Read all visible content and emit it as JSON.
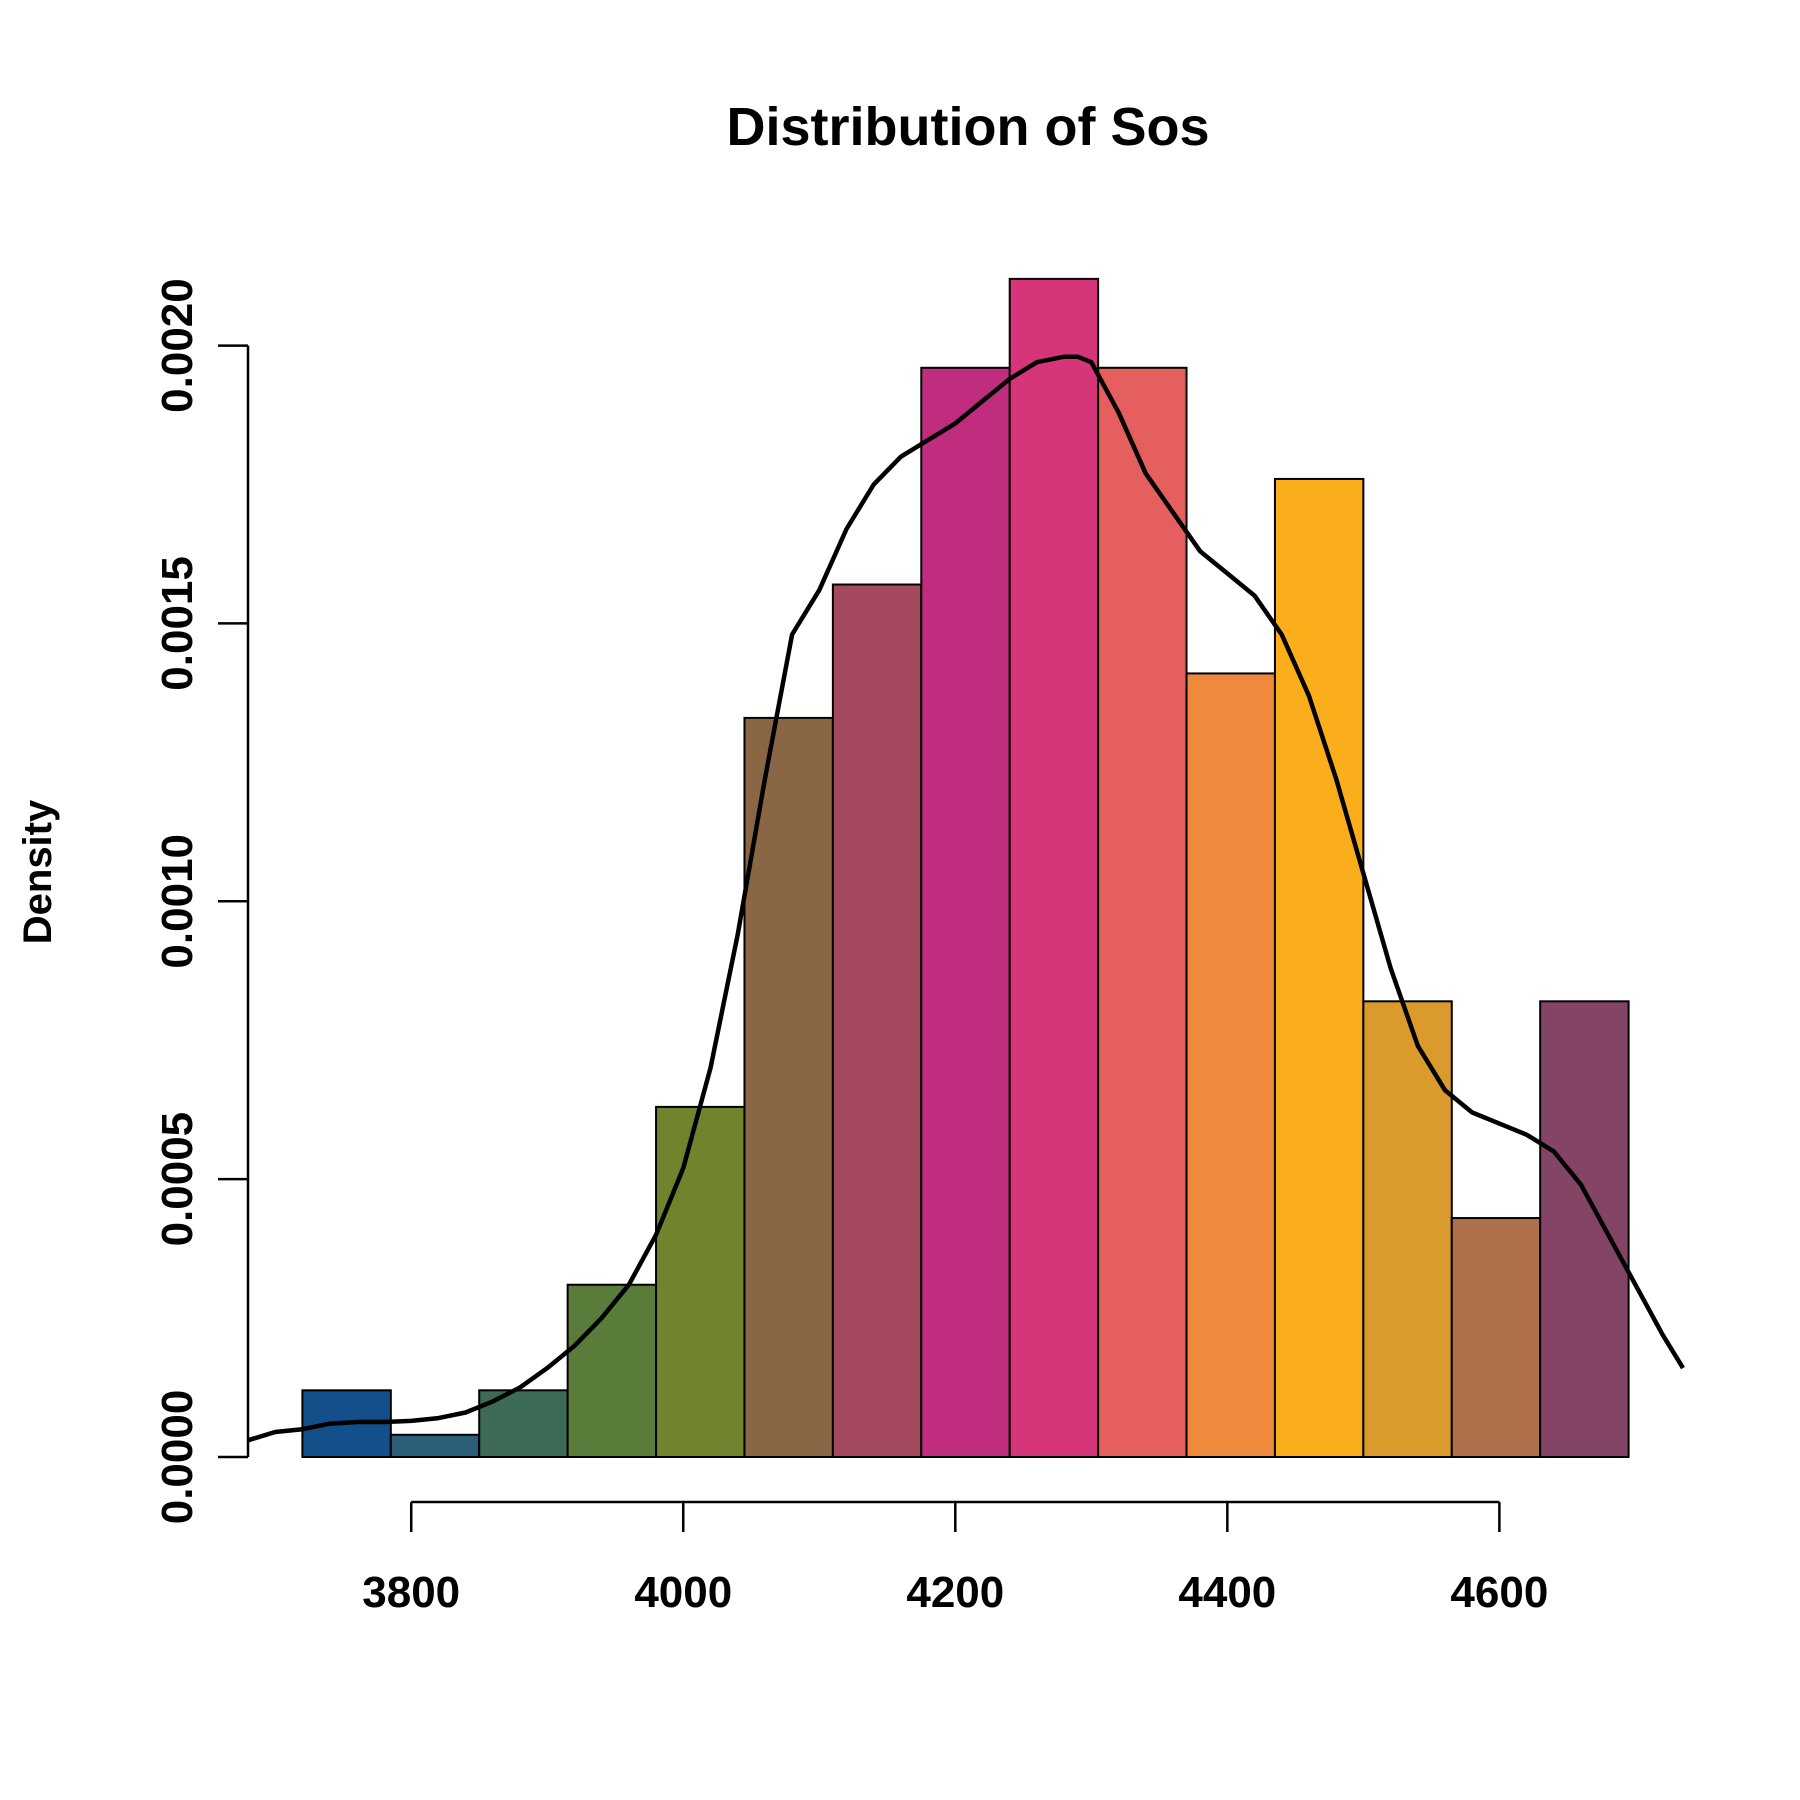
{
  "chart_data": {
    "type": "bar",
    "title": "Distribution of Sos",
    "xlabel": "",
    "ylabel": "Density",
    "xlim": [
      3680,
      4735
    ],
    "ylim": [
      0,
      0.0021
    ],
    "x_ticks": [
      3800,
      4000,
      4200,
      4400,
      4600
    ],
    "x_tick_labels": [
      "3800",
      "4000",
      "4200",
      "4400",
      "4600"
    ],
    "y_ticks": [
      0.0,
      0.0005,
      0.001,
      0.0015,
      0.002
    ],
    "y_tick_labels": [
      "0.0000",
      "0.0005",
      "0.0010",
      "0.0015",
      "0.0020"
    ],
    "bins": [
      {
        "x0": 3720,
        "x1": 3785,
        "density": 0.00012,
        "color": "#134F8A"
      },
      {
        "x0": 3785,
        "x1": 3850,
        "density": 4e-05,
        "color": "#2B5E79"
      },
      {
        "x0": 3850,
        "x1": 3915,
        "density": 0.00012,
        "color": "#3E6B55"
      },
      {
        "x0": 3915,
        "x1": 3980,
        "density": 0.00031,
        "color": "#5A7C3B"
      },
      {
        "x0": 3980,
        "x1": 4045,
        "density": 0.00063,
        "color": "#71842D"
      },
      {
        "x0": 4045,
        "x1": 4110,
        "density": 0.00133,
        "color": "#8A6744"
      },
      {
        "x0": 4110,
        "x1": 4175,
        "density": 0.00157,
        "color": "#A54A5E"
      },
      {
        "x0": 4175,
        "x1": 4240,
        "density": 0.00196,
        "color": "#C02D7E"
      },
      {
        "x0": 4240,
        "x1": 4305,
        "density": 0.00212,
        "color": "#D6357A"
      },
      {
        "x0": 4305,
        "x1": 4370,
        "density": 0.00196,
        "color": "#E45F5D"
      },
      {
        "x0": 4370,
        "x1": 4435,
        "density": 0.00141,
        "color": "#EF893C"
      },
      {
        "x0": 4435,
        "x1": 4500,
        "density": 0.00176,
        "color": "#FAAE1C"
      },
      {
        "x0": 4500,
        "x1": 4565,
        "density": 0.00082,
        "color": "#DB9A2C"
      },
      {
        "x0": 4565,
        "x1": 4630,
        "density": 0.00043,
        "color": "#B0704B"
      },
      {
        "x0": 4630,
        "x1": 4695,
        "density": 0.00082,
        "color": "#834466"
      }
    ],
    "density_curve": {
      "x": [
        3680,
        3700,
        3720,
        3740,
        3760,
        3780,
        3800,
        3820,
        3840,
        3860,
        3880,
        3900,
        3920,
        3940,
        3960,
        3980,
        4000,
        4020,
        4040,
        4060,
        4080,
        4100,
        4120,
        4140,
        4160,
        4180,
        4200,
        4220,
        4240,
        4260,
        4280,
        4290,
        4300,
        4320,
        4340,
        4360,
        4380,
        4400,
        4420,
        4440,
        4460,
        4480,
        4500,
        4520,
        4540,
        4560,
        4580,
        4600,
        4620,
        4640,
        4660,
        4680,
        4700,
        4720,
        4735
      ],
      "y": [
        3e-05,
        4.5e-05,
        5e-05,
        6e-05,
        6.3e-05,
        6.3e-05,
        6.5e-05,
        7e-05,
        8e-05,
        0.0001,
        0.000125,
        0.00016,
        0.0002,
        0.00025,
        0.00031,
        0.0004,
        0.00052,
        0.0007,
        0.00094,
        0.00122,
        0.00148,
        0.00156,
        0.00167,
        0.00175,
        0.0018,
        0.00183,
        0.00186,
        0.0019,
        0.00194,
        0.00197,
        0.00198,
        0.00198,
        0.00197,
        0.00188,
        0.00177,
        0.0017,
        0.00163,
        0.00159,
        0.00155,
        0.00148,
        0.00137,
        0.00122,
        0.00105,
        0.00088,
        0.00074,
        0.00066,
        0.00062,
        0.0006,
        0.00058,
        0.00055,
        0.00049,
        0.0004,
        0.00031,
        0.00022,
        0.00016
      ]
    }
  }
}
